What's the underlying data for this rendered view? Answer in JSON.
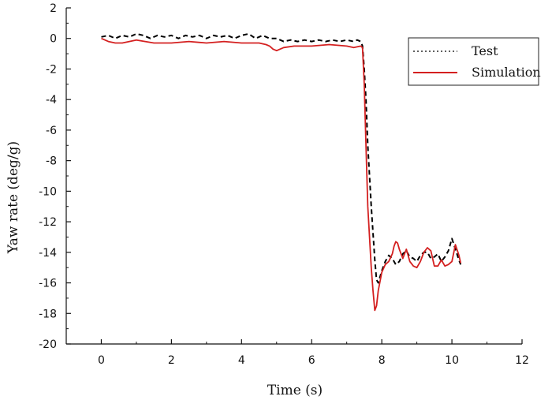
{
  "chart_data": {
    "type": "line",
    "title": "",
    "xlabel": "Time (s)",
    "ylabel": "Yaw rate (deg/g)",
    "xlim": [
      -1,
      12
    ],
    "ylim": [
      -20,
      2
    ],
    "xticks": [
      0,
      2,
      4,
      6,
      8,
      10,
      12
    ],
    "yticks": [
      2,
      0,
      -2,
      -4,
      -6,
      -8,
      -10,
      -12,
      -14,
      -16,
      -18,
      -20
    ],
    "grid": false,
    "legend_position": "top-right",
    "series": [
      {
        "name": "Test",
        "color": "#000000",
        "style": "dashed",
        "x": [
          0.0,
          0.2,
          0.4,
          0.6,
          0.8,
          1.0,
          1.2,
          1.4,
          1.6,
          1.8,
          2.0,
          2.2,
          2.4,
          2.6,
          2.8,
          3.0,
          3.2,
          3.4,
          3.6,
          3.8,
          4.0,
          4.2,
          4.4,
          4.6,
          4.8,
          5.0,
          5.2,
          5.4,
          5.6,
          5.8,
          6.0,
          6.2,
          6.4,
          6.6,
          6.8,
          7.0,
          7.2,
          7.3,
          7.4,
          7.45,
          7.5,
          7.55,
          7.6,
          7.7,
          7.8,
          7.85,
          7.9,
          8.0,
          8.1,
          8.2,
          8.3,
          8.4,
          8.5,
          8.6,
          8.7,
          8.8,
          8.9,
          9.0,
          9.1,
          9.2,
          9.3,
          9.4,
          9.5,
          9.6,
          9.7,
          9.8,
          9.9,
          10.0,
          10.1,
          10.2,
          10.25
        ],
        "y": [
          0.1,
          0.2,
          0.0,
          0.2,
          0.1,
          0.3,
          0.2,
          0.0,
          0.2,
          0.1,
          0.2,
          0.0,
          0.2,
          0.1,
          0.2,
          0.0,
          0.2,
          0.1,
          0.2,
          0.0,
          0.2,
          0.3,
          0.0,
          0.2,
          0.0,
          0.0,
          -0.2,
          -0.1,
          -0.2,
          -0.1,
          -0.2,
          -0.1,
          -0.2,
          -0.1,
          -0.2,
          -0.1,
          -0.2,
          -0.1,
          -0.2,
          -0.5,
          -2.0,
          -4.0,
          -7.0,
          -11.0,
          -14.5,
          -15.8,
          -16.0,
          -15.2,
          -14.6,
          -14.2,
          -14.4,
          -14.8,
          -14.6,
          -14.1,
          -13.9,
          -14.3,
          -14.4,
          -14.6,
          -14.2,
          -14.0,
          -14.0,
          -14.4,
          -14.3,
          -14.1,
          -14.6,
          -14.3,
          -13.9,
          -13.1,
          -13.8,
          -14.5,
          -14.8
        ]
      },
      {
        "name": "Simulation",
        "color": "#d42020",
        "style": "solid",
        "x": [
          0.0,
          0.2,
          0.4,
          0.6,
          0.8,
          1.0,
          1.5,
          2.0,
          2.5,
          3.0,
          3.5,
          4.0,
          4.5,
          4.7,
          4.8,
          4.9,
          5.0,
          5.2,
          5.5,
          6.0,
          6.5,
          7.0,
          7.2,
          7.4,
          7.45,
          7.5,
          7.55,
          7.6,
          7.7,
          7.75,
          7.8,
          7.85,
          7.9,
          8.0,
          8.1,
          8.2,
          8.3,
          8.35,
          8.4,
          8.45,
          8.5,
          8.6,
          8.7,
          8.8,
          8.9,
          9.0,
          9.1,
          9.2,
          9.3,
          9.4,
          9.5,
          9.6,
          9.7,
          9.8,
          9.9,
          10.0,
          10.1,
          10.2,
          10.25
        ],
        "y": [
          0.0,
          -0.2,
          -0.3,
          -0.3,
          -0.2,
          -0.1,
          -0.3,
          -0.3,
          -0.2,
          -0.3,
          -0.2,
          -0.3,
          -0.3,
          -0.4,
          -0.5,
          -0.7,
          -0.8,
          -0.6,
          -0.5,
          -0.5,
          -0.4,
          -0.5,
          -0.6,
          -0.5,
          -0.6,
          -3.0,
          -7.0,
          -11.0,
          -15.0,
          -16.5,
          -17.8,
          -17.5,
          -16.5,
          -15.3,
          -14.8,
          -14.6,
          -14.1,
          -13.6,
          -13.3,
          -13.4,
          -13.8,
          -14.4,
          -13.8,
          -14.6,
          -14.9,
          -15.0,
          -14.6,
          -14.0,
          -13.7,
          -13.9,
          -14.9,
          -14.9,
          -14.5,
          -14.9,
          -14.8,
          -14.6,
          -13.5,
          -14.2,
          -14.7
        ]
      }
    ]
  }
}
